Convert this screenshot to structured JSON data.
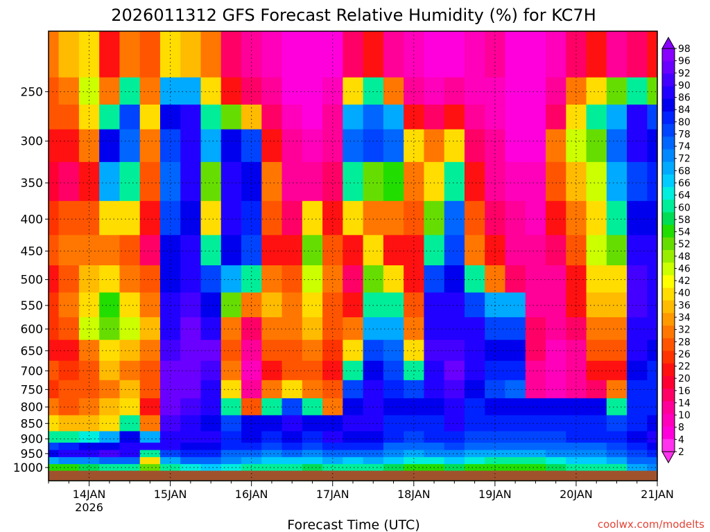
{
  "chart_data": {
    "type": "heatmap",
    "title": "2026011312 GFS Forecast Relative Humidity (%) for KC7H",
    "xlabel": "Forecast Time (UTC)",
    "ylabel": "",
    "credit": "coolwx.com/modelts",
    "x_ticks": [
      {
        "label": "14JAN",
        "sublabel": "2026",
        "hour": 12
      },
      {
        "label": "15JAN",
        "sublabel": "",
        "hour": 36
      },
      {
        "label": "16JAN",
        "sublabel": "",
        "hour": 60
      },
      {
        "label": "17JAN",
        "sublabel": "",
        "hour": 84
      },
      {
        "label": "18JAN",
        "sublabel": "",
        "hour": 108
      },
      {
        "label": "19JAN",
        "sublabel": "",
        "hour": 132
      },
      {
        "label": "20JAN",
        "sublabel": "",
        "hour": 156
      },
      {
        "label": "21JAN",
        "sublabel": "",
        "hour": 180
      }
    ],
    "xlim_hours": [
      0,
      180
    ],
    "y_scale": "log",
    "ylim": [
      1050,
      200
    ],
    "y_ticks": [
      250,
      300,
      350,
      400,
      450,
      500,
      550,
      600,
      650,
      700,
      750,
      800,
      850,
      900,
      950,
      1000
    ],
    "grid": true,
    "colorbar": {
      "labels": [
        98,
        96,
        92,
        90,
        86,
        84,
        80,
        78,
        74,
        72,
        68,
        66,
        64,
        60,
        58,
        54,
        52,
        48,
        46,
        42,
        40,
        36,
        34,
        32,
        28,
        26,
        22,
        20,
        16,
        14,
        10,
        8,
        4,
        2
      ],
      "colors_top_to_bottom": [
        "#8800ff",
        "#6a00ff",
        "#4400ff",
        "#2200ff",
        "#0000ee",
        "#0022ff",
        "#0044ff",
        "#0066ff",
        "#0088ff",
        "#00aaff",
        "#00ccff",
        "#00eedd",
        "#00ee99",
        "#00dd55",
        "#22dd00",
        "#66dd00",
        "#99ee00",
        "#ccff00",
        "#ffff00",
        "#ffdd00",
        "#ffbb00",
        "#ff9900",
        "#ff7700",
        "#ff5500",
        "#ff3300",
        "#ff1111",
        "#ff0033",
        "#ff0066",
        "#ff0099",
        "#ff00bb",
        "#ff00dd",
        "#ff33ee"
      ]
    },
    "surface_pressure_approx": 1012,
    "surface_color": "#a0522d",
    "columns": [
      {
        "hour": 0,
        "rh": [
          30,
          25,
          28,
          20,
          18,
          22,
          25,
          20,
          22,
          24,
          20,
          25,
          22,
          30,
          40,
          60,
          80,
          85,
          70,
          55
        ]
      },
      {
        "hour": 6,
        "rh": [
          35,
          30,
          25,
          20,
          15,
          25,
          30,
          28,
          30,
          25,
          20,
          22,
          25,
          28,
          35,
          60,
          82,
          88,
          72,
          55
        ]
      },
      {
        "hour": 12,
        "rh": [
          40,
          45,
          40,
          30,
          20,
          25,
          30,
          35,
          40,
          45,
          30,
          25,
          28,
          30,
          35,
          65,
          85,
          90,
          74,
          58
        ]
      },
      {
        "hour": 18,
        "rh": [
          20,
          30,
          60,
          85,
          70,
          40,
          30,
          40,
          55,
          50,
          40,
          35,
          30,
          35,
          40,
          70,
          86,
          92,
          78,
          60
        ]
      },
      {
        "hour": 24,
        "rh": [
          30,
          60,
          80,
          75,
          60,
          40,
          28,
          30,
          40,
          45,
          35,
          30,
          35,
          40,
          60,
          85,
          90,
          88,
          76,
          62
        ]
      },
      {
        "hour": 30,
        "rh": [
          25,
          30,
          40,
          30,
          25,
          20,
          15,
          25,
          30,
          35,
          30,
          28,
          25,
          20,
          30,
          70,
          88,
          60,
          40,
          50
        ]
      },
      {
        "hour": 36,
        "rh": [
          40,
          70,
          85,
          80,
          75,
          80,
          85,
          86,
          88,
          90,
          92,
          94,
          95,
          94,
          92,
          90,
          88,
          80,
          70,
          60
        ]
      },
      {
        "hour": 42,
        "rh": [
          35,
          70,
          88,
          90,
          88,
          86,
          88,
          90,
          92,
          94,
          96,
          95,
          94,
          92,
          90,
          88,
          86,
          84,
          78,
          64
        ]
      },
      {
        "hour": 48,
        "rh": [
          30,
          40,
          60,
          70,
          50,
          40,
          60,
          80,
          86,
          90,
          94,
          92,
          90,
          88,
          86,
          88,
          86,
          82,
          76,
          66
        ]
      },
      {
        "hour": 54,
        "rh": [
          15,
          20,
          50,
          85,
          88,
          90,
          86,
          70,
          50,
          30,
          25,
          30,
          40,
          60,
          80,
          84,
          82,
          78,
          72,
          64
        ]
      },
      {
        "hour": 60,
        "rh": [
          10,
          15,
          35,
          80,
          86,
          84,
          80,
          60,
          30,
          15,
          10,
          8,
          10,
          25,
          85,
          86,
          82,
          76,
          70,
          62
        ]
      },
      {
        "hour": 66,
        "rh": [
          8,
          10,
          15,
          20,
          30,
          25,
          20,
          30,
          35,
          30,
          25,
          20,
          30,
          60,
          86,
          84,
          80,
          74,
          68,
          60
        ]
      },
      {
        "hour": 72,
        "rh": [
          5,
          6,
          8,
          10,
          12,
          15,
          20,
          25,
          30,
          30,
          28,
          25,
          40,
          80,
          88,
          86,
          82,
          76,
          68,
          60
        ]
      },
      {
        "hour": 78,
        "rh": [
          5,
          5,
          6,
          8,
          10,
          40,
          50,
          45,
          40,
          35,
          30,
          25,
          30,
          60,
          86,
          84,
          80,
          74,
          68,
          58
        ]
      },
      {
        "hour": 84,
        "rh": [
          6,
          8,
          10,
          12,
          15,
          20,
          25,
          30,
          28,
          25,
          22,
          20,
          25,
          30,
          85,
          88,
          84,
          78,
          70,
          62
        ]
      },
      {
        "hour": 90,
        "rh": [
          15,
          40,
          70,
          76,
          60,
          40,
          20,
          15,
          20,
          30,
          40,
          60,
          80,
          86,
          88,
          86,
          82,
          76,
          68,
          60
        ]
      },
      {
        "hour": 96,
        "rh": [
          20,
          60,
          78,
          80,
          50,
          30,
          40,
          50,
          60,
          70,
          80,
          86,
          88,
          90,
          88,
          86,
          82,
          76,
          70,
          62
        ]
      },
      {
        "hour": 102,
        "rh": [
          10,
          30,
          70,
          76,
          55,
          30,
          20,
          40,
          60,
          70,
          75,
          80,
          84,
          86,
          84,
          82,
          78,
          72,
          66,
          58
        ]
      },
      {
        "hour": 108,
        "rh": [
          8,
          10,
          20,
          40,
          30,
          25,
          20,
          20,
          25,
          30,
          40,
          60,
          80,
          85,
          82,
          80,
          76,
          70,
          64,
          56
        ]
      },
      {
        "hour": 114,
        "rh": [
          5,
          8,
          15,
          30,
          40,
          50,
          60,
          80,
          88,
          90,
          92,
          90,
          88,
          86,
          84,
          82,
          78,
          72,
          64,
          56
        ]
      },
      {
        "hour": 120,
        "rh": [
          6,
          10,
          20,
          40,
          60,
          75,
          80,
          85,
          88,
          90,
          92,
          94,
          92,
          90,
          88,
          84,
          80,
          74,
          66,
          58
        ]
      },
      {
        "hour": 126,
        "rh": [
          8,
          8,
          10,
          15,
          20,
          25,
          30,
          60,
          80,
          88,
          90,
          88,
          86,
          84,
          82,
          80,
          76,
          70,
          64,
          56
        ]
      },
      {
        "hour": 132,
        "rh": [
          10,
          8,
          8,
          10,
          12,
          15,
          20,
          30,
          70,
          80,
          86,
          84,
          80,
          86,
          84,
          80,
          76,
          70,
          62,
          56
        ]
      },
      {
        "hour": 138,
        "rh": [
          6,
          5,
          5,
          6,
          8,
          10,
          12,
          15,
          70,
          80,
          86,
          82,
          78,
          86,
          84,
          80,
          76,
          70,
          62,
          56
        ]
      },
      {
        "hour": 144,
        "rh": [
          5,
          5,
          5,
          6,
          8,
          8,
          10,
          10,
          12,
          15,
          15,
          12,
          10,
          86,
          84,
          80,
          76,
          70,
          62,
          56
        ]
      },
      {
        "hour": 150,
        "rh": [
          8,
          10,
          15,
          30,
          25,
          20,
          15,
          10,
          12,
          10,
          8,
          8,
          8,
          86,
          84,
          80,
          76,
          72,
          64,
          58
        ]
      },
      {
        "hour": 156,
        "rh": [
          15,
          30,
          40,
          45,
          35,
          30,
          25,
          20,
          20,
          15,
          12,
          10,
          10,
          86,
          84,
          82,
          78,
          72,
          66,
          60
        ]
      },
      {
        "hour": 162,
        "rh": [
          20,
          40,
          60,
          50,
          45,
          40,
          45,
          40,
          35,
          30,
          25,
          20,
          15,
          86,
          84,
          82,
          78,
          72,
          66,
          60
        ]
      },
      {
        "hour": 168,
        "rh": [
          10,
          50,
          70,
          75,
          70,
          60,
          50,
          40,
          35,
          30,
          25,
          20,
          30,
          60,
          80,
          84,
          80,
          76,
          70,
          62
        ]
      },
      {
        "hour": 174,
        "rh": [
          15,
          60,
          88,
          90,
          80,
          85,
          90,
          92,
          92,
          90,
          88,
          86,
          84,
          82,
          84,
          86,
          84,
          80,
          76,
          70
        ]
      },
      {
        "hour": 180,
        "rh": [
          20,
          50,
          80,
          86,
          84,
          86,
          88,
          90,
          90,
          88,
          86,
          84,
          84,
          84,
          86,
          88,
          86,
          82,
          78,
          72
        ]
      }
    ],
    "levels_hpa": [
      225,
      250,
      275,
      300,
      350,
      400,
      450,
      500,
      550,
      600,
      650,
      700,
      750,
      800,
      850,
      900,
      925,
      950,
      975,
      1000
    ]
  }
}
